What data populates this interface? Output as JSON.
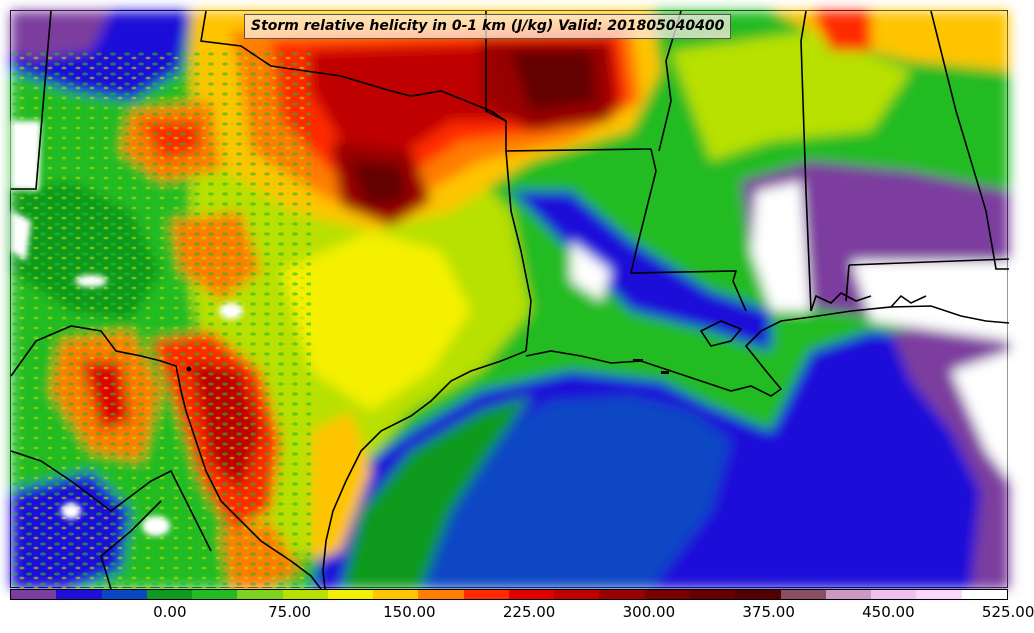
{
  "map": {
    "title": "Storm relative helicity in 0-1 km (J/kg) Valid: 201805040400",
    "variable": "Storm relative helicity in 0-1 km",
    "units": "J/kg",
    "valid_time": "201805040400"
  },
  "colorbar": {
    "colors": [
      "#7b3d9e",
      "#1f10d8",
      "#0a47c4",
      "#0f9a1f",
      "#22bb22",
      "#7ed321",
      "#b8e000",
      "#f5f000",
      "#ffc400",
      "#ff7d00",
      "#ff2a00",
      "#e00000",
      "#bf0000",
      "#990000",
      "#7a0000",
      "#640000",
      "#520000",
      "#8a4f5f",
      "#cc99c4",
      "#f0c0f0",
      "#fad6fa",
      "#ffffff"
    ],
    "tick_labels": [
      "0.00",
      "75.00",
      "150.00",
      "225.00",
      "300.00",
      "375.00",
      "450.00",
      "525.00"
    ],
    "tick_segment_index": [
      2,
      5,
      8,
      11,
      14,
      17,
      20,
      23
    ]
  }
}
